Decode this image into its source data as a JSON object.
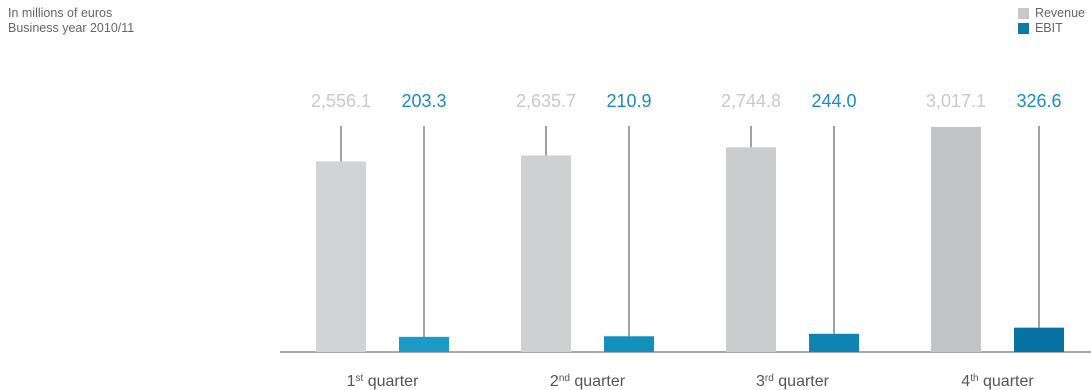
{
  "header": {
    "unit_line": "In millions of euros",
    "period_line": "Business year 2010/11"
  },
  "legend": {
    "items": [
      {
        "label": "Revenue",
        "color": "#c8c9cb"
      },
      {
        "label": "EBIT",
        "color": "#0a7aa7"
      }
    ],
    "placement": "top-right"
  },
  "chart_data": {
    "type": "bar",
    "categories": [
      "1st quarter",
      "2nd quarter",
      "3rd quarter",
      "4th quarter"
    ],
    "category_parts": [
      {
        "num": "1",
        "sup": "st",
        "rest": " quarter"
      },
      {
        "num": "2",
        "sup": "nd",
        "rest": " quarter"
      },
      {
        "num": "3",
        "sup": "rd",
        "rest": " quarter"
      },
      {
        "num": "4",
        "sup": "th",
        "rest": " quarter"
      }
    ],
    "series": [
      {
        "name": "Revenue",
        "values": [
          2556.1,
          2635.7,
          2744.8,
          3017.1
        ],
        "labels": [
          "2,556.1",
          "2,635.7",
          "2,744.8",
          "3,017.1"
        ],
        "colors": [
          "#d2d3d5",
          "#cfd0d2",
          "#cbcccd",
          "#c3c4c6"
        ],
        "label_color": "#c8c9cb"
      },
      {
        "name": "EBIT",
        "values": [
          203.3,
          210.9,
          244.0,
          326.6
        ],
        "labels": [
          "203.3",
          "210.9",
          "244.0",
          "326.6"
        ],
        "colors": [
          "#1a9ac7",
          "#138fbc",
          "#0d84b1",
          "#0873a3"
        ],
        "label_color": "#1a8dbd"
      }
    ],
    "ylim": [
      0,
      3017.1
    ],
    "grid": false
  }
}
